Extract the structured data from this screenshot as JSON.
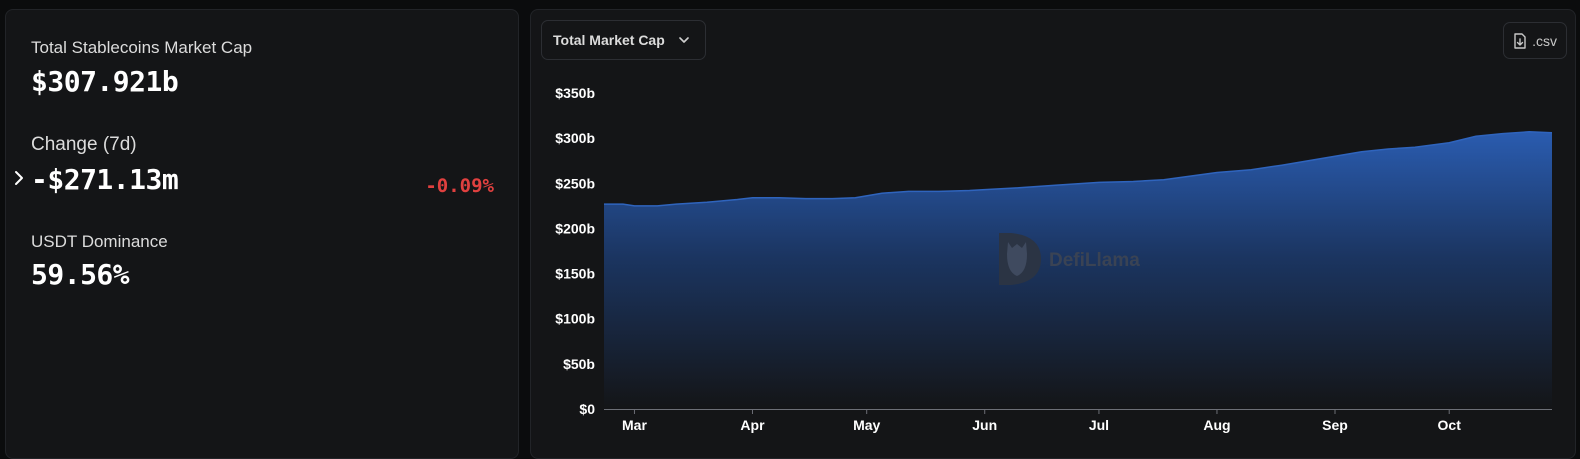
{
  "stats": {
    "market_cap_label": "Total Stablecoins Market Cap",
    "market_cap_value": "$307.921b",
    "change_label": "Change (7d)",
    "change_value": "-$271.13m",
    "change_pct": "-0.09%",
    "dominance_label": "USDT Dominance",
    "dominance_value": "59.56%"
  },
  "toolbar": {
    "metric_label": "Total Market Cap",
    "csv_label": ".csv"
  },
  "watermark": {
    "text": "DefiLlama"
  },
  "colors": {
    "accent": "#2d5fb5",
    "negative": "#e0403f",
    "background": "#141517"
  },
  "chart_data": {
    "type": "area",
    "ylim": [
      0,
      350
    ],
    "y_ticks": [
      {
        "value": 0,
        "label": "$0"
      },
      {
        "value": 50,
        "label": "$50b"
      },
      {
        "value": 100,
        "label": "$100b"
      },
      {
        "value": 150,
        "label": "$150b"
      },
      {
        "value": 200,
        "label": "$200b"
      },
      {
        "value": 250,
        "label": "$250b"
      },
      {
        "value": 300,
        "label": "$300b"
      },
      {
        "value": 350,
        "label": "$350b"
      }
    ],
    "xlim": [
      "2025-02-21",
      "2025-10-28"
    ],
    "x_ticks": [
      {
        "date": "2025-03-01",
        "label": "Mar"
      },
      {
        "date": "2025-04-01",
        "label": "Apr"
      },
      {
        "date": "2025-05-01",
        "label": "May"
      },
      {
        "date": "2025-06-01",
        "label": "Jun"
      },
      {
        "date": "2025-07-01",
        "label": "Jul"
      },
      {
        "date": "2025-08-01",
        "label": "Aug"
      },
      {
        "date": "2025-09-01",
        "label": "Sep"
      },
      {
        "date": "2025-10-01",
        "label": "Oct"
      }
    ],
    "series": [
      {
        "points": [
          [
            "2025-02-21",
            227
          ],
          [
            "2025-02-26",
            227
          ],
          [
            "2025-03-01",
            225
          ],
          [
            "2025-03-07",
            225
          ],
          [
            "2025-03-12",
            227
          ],
          [
            "2025-03-20",
            229
          ],
          [
            "2025-03-28",
            232
          ],
          [
            "2025-04-01",
            234
          ],
          [
            "2025-04-08",
            234
          ],
          [
            "2025-04-15",
            233
          ],
          [
            "2025-04-22",
            233
          ],
          [
            "2025-04-28",
            234
          ],
          [
            "2025-05-05",
            239
          ],
          [
            "2025-05-12",
            241
          ],
          [
            "2025-05-20",
            241
          ],
          [
            "2025-05-28",
            242
          ],
          [
            "2025-06-01",
            243
          ],
          [
            "2025-06-10",
            245
          ],
          [
            "2025-06-20",
            248
          ],
          [
            "2025-07-01",
            251
          ],
          [
            "2025-07-10",
            252
          ],
          [
            "2025-07-18",
            254
          ],
          [
            "2025-07-25",
            258
          ],
          [
            "2025-08-01",
            262
          ],
          [
            "2025-08-10",
            265
          ],
          [
            "2025-08-18",
            270
          ],
          [
            "2025-08-25",
            275
          ],
          [
            "2025-09-01",
            280
          ],
          [
            "2025-09-08",
            285
          ],
          [
            "2025-09-15",
            288
          ],
          [
            "2025-09-22",
            290
          ],
          [
            "2025-10-01",
            295
          ],
          [
            "2025-10-08",
            302
          ],
          [
            "2025-10-15",
            305
          ],
          [
            "2025-10-22",
            307
          ],
          [
            "2025-10-28",
            306
          ]
        ]
      }
    ]
  }
}
